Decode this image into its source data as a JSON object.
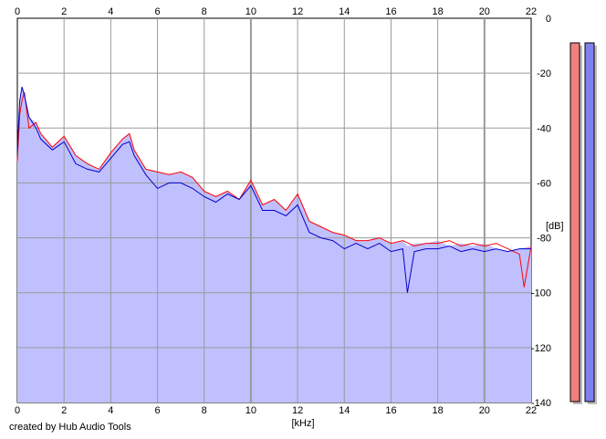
{
  "credit": "created by Hub Audio Tools",
  "chart_data": {
    "type": "line",
    "title": "",
    "xlabel": "[kHz]",
    "ylabel": "[dB]",
    "xlim": [
      0,
      22
    ],
    "ylim": [
      -140,
      0
    ],
    "x_ticks": [
      "0",
      "2",
      "4",
      "6",
      "8",
      "10",
      "12",
      "14",
      "16",
      "18",
      "20",
      "22"
    ],
    "y_ticks": [
      "0",
      "-20",
      "-40",
      "-60",
      "-80",
      "-100",
      "-120",
      "-140"
    ],
    "grid": true,
    "fill_color": "#c0c0ff",
    "series": [
      {
        "color": "#ff0000",
        "points": [
          [
            0,
            -52
          ],
          [
            0.1,
            -35
          ],
          [
            0.2,
            -30
          ],
          [
            0.3,
            -27
          ],
          [
            0.5,
            -40
          ],
          [
            0.8,
            -38
          ],
          [
            1.0,
            -42
          ],
          [
            1.5,
            -47
          ],
          [
            2.0,
            -43
          ],
          [
            2.5,
            -50
          ],
          [
            3.0,
            -53
          ],
          [
            3.5,
            -55
          ],
          [
            4.0,
            -49
          ],
          [
            4.5,
            -44
          ],
          [
            4.8,
            -42
          ],
          [
            5.0,
            -48
          ],
          [
            5.5,
            -55
          ],
          [
            6.0,
            -56
          ],
          [
            6.5,
            -57
          ],
          [
            7.0,
            -56
          ],
          [
            7.5,
            -58
          ],
          [
            8.0,
            -63
          ],
          [
            8.5,
            -65
          ],
          [
            9.0,
            -63
          ],
          [
            9.5,
            -66
          ],
          [
            10.0,
            -59
          ],
          [
            10.5,
            -68
          ],
          [
            11.0,
            -66
          ],
          [
            11.5,
            -70
          ],
          [
            12.0,
            -64
          ],
          [
            12.5,
            -74
          ],
          [
            13.0,
            -76
          ],
          [
            13.5,
            -78
          ],
          [
            14.0,
            -79
          ],
          [
            14.5,
            -81
          ],
          [
            15.0,
            -81
          ],
          [
            15.5,
            -80
          ],
          [
            16.0,
            -82
          ],
          [
            16.5,
            -81
          ],
          [
            17.0,
            -83
          ],
          [
            17.5,
            -82
          ],
          [
            18.0,
            -82
          ],
          [
            18.5,
            -81
          ],
          [
            19.0,
            -83
          ],
          [
            19.5,
            -82
          ],
          [
            20.0,
            -83
          ],
          [
            20.5,
            -82
          ],
          [
            21.0,
            -84
          ],
          [
            21.5,
            -86
          ],
          [
            21.7,
            -98
          ],
          [
            22.0,
            -83
          ]
        ]
      },
      {
        "color": "#0000cc",
        "points": [
          [
            0,
            -48
          ],
          [
            0.1,
            -30
          ],
          [
            0.2,
            -25
          ],
          [
            0.3,
            -28
          ],
          [
            0.5,
            -36
          ],
          [
            0.8,
            -40
          ],
          [
            1.0,
            -44
          ],
          [
            1.5,
            -48
          ],
          [
            2.0,
            -45
          ],
          [
            2.5,
            -53
          ],
          [
            3.0,
            -55
          ],
          [
            3.5,
            -56
          ],
          [
            4.0,
            -51
          ],
          [
            4.5,
            -46
          ],
          [
            4.8,
            -45
          ],
          [
            5.0,
            -50
          ],
          [
            5.5,
            -57
          ],
          [
            6.0,
            -62
          ],
          [
            6.5,
            -60
          ],
          [
            7.0,
            -60
          ],
          [
            7.5,
            -62
          ],
          [
            8.0,
            -65
          ],
          [
            8.5,
            -67
          ],
          [
            9.0,
            -64
          ],
          [
            9.5,
            -66
          ],
          [
            10.0,
            -61
          ],
          [
            10.5,
            -70
          ],
          [
            11.0,
            -70
          ],
          [
            11.5,
            -72
          ],
          [
            12.0,
            -68
          ],
          [
            12.5,
            -78
          ],
          [
            13.0,
            -80
          ],
          [
            13.5,
            -81
          ],
          [
            14.0,
            -84
          ],
          [
            14.5,
            -82
          ],
          [
            15.0,
            -84
          ],
          [
            15.5,
            -82
          ],
          [
            16.0,
            -85
          ],
          [
            16.5,
            -84
          ],
          [
            16.7,
            -100
          ],
          [
            17.0,
            -85
          ],
          [
            17.5,
            -84
          ],
          [
            18.0,
            -84
          ],
          [
            18.5,
            -83
          ],
          [
            19.0,
            -85
          ],
          [
            19.5,
            -84
          ],
          [
            20.0,
            -85
          ],
          [
            20.5,
            -84
          ],
          [
            21.0,
            -85
          ],
          [
            21.5,
            -84
          ],
          [
            22.0,
            -84
          ]
        ]
      }
    ]
  },
  "meters": [
    {
      "fill_color": "#f08080",
      "level": 0.0
    },
    {
      "fill_color": "#8080f0",
      "level": 0.0
    }
  ]
}
